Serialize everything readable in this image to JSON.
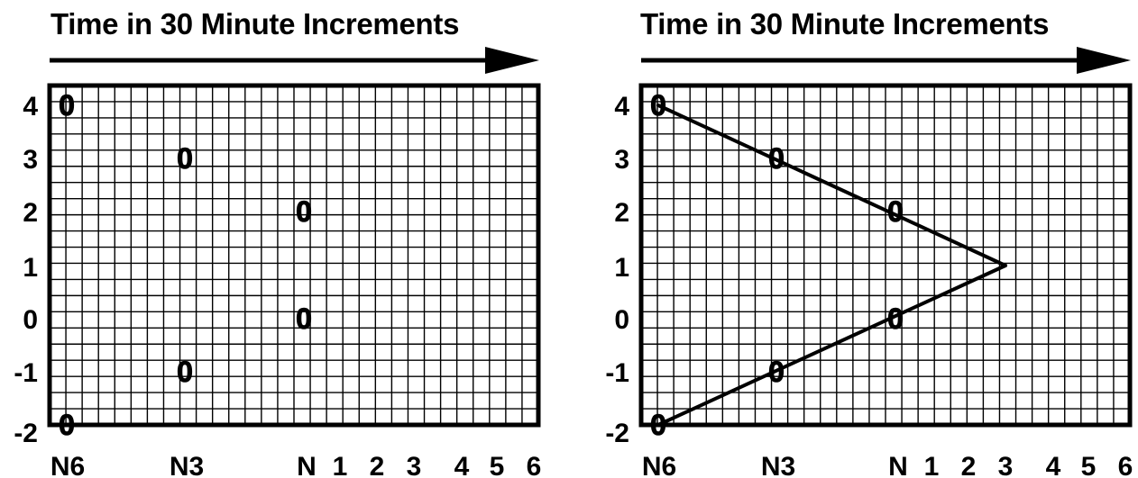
{
  "title": "Time in 30 Minute Increments",
  "x_tick_labels": [
    "N6",
    "N3",
    "N",
    "1",
    "2",
    "3",
    "4",
    "5",
    "6"
  ],
  "y_tick_labels": [
    "4",
    "3",
    "2",
    "1",
    "0",
    "-1",
    "-2"
  ],
  "marker_symbol": "0",
  "colors": {
    "line": "#000000",
    "background": "#ffffff"
  },
  "chart_data": [
    {
      "type": "scatter",
      "title": "Time in 30 Minute Increments",
      "xlabel": "",
      "ylabel": "",
      "x_ticks": [
        "N6",
        "N3",
        "N",
        "1",
        "2",
        "3",
        "4",
        "5",
        "6"
      ],
      "y_ticks": [
        4,
        3,
        2,
        1,
        0,
        -1,
        -2
      ],
      "grid": true,
      "points": [
        {
          "x": "N6",
          "y": 4
        },
        {
          "x": "N3",
          "y": 3
        },
        {
          "x": "N",
          "y": 2
        },
        {
          "x": "N",
          "y": 0
        },
        {
          "x": "N3",
          "y": -1
        },
        {
          "x": "N6",
          "y": -2
        }
      ]
    },
    {
      "type": "line",
      "title": "Time in 30 Minute Increments",
      "xlabel": "",
      "ylabel": "",
      "x_ticks": [
        "N6",
        "N3",
        "N",
        "1",
        "2",
        "3",
        "4",
        "5",
        "6"
      ],
      "y_ticks": [
        4,
        3,
        2,
        1,
        0,
        -1,
        -2
      ],
      "grid": true,
      "points": [
        {
          "x": "N6",
          "y": 4
        },
        {
          "x": "N3",
          "y": 3
        },
        {
          "x": "N",
          "y": 2
        },
        {
          "x": "N",
          "y": 0
        },
        {
          "x": "N3",
          "y": -1
        },
        {
          "x": "N6",
          "y": -2
        }
      ],
      "lines": [
        {
          "from": {
            "x": "N6",
            "y": 4
          },
          "to": {
            "x": "3",
            "y": 1
          }
        },
        {
          "from": {
            "x": "N6",
            "y": -2
          },
          "to": {
            "x": "3",
            "y": 1
          }
        }
      ]
    }
  ]
}
